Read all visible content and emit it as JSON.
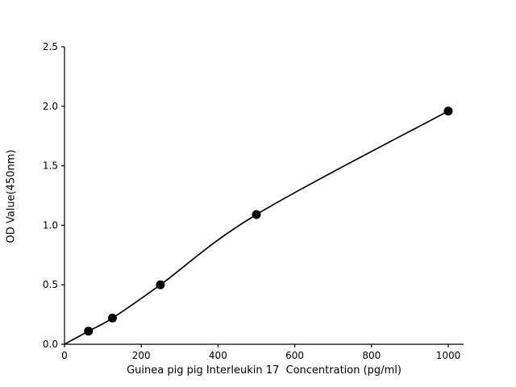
{
  "chart_data": {
    "type": "scatter",
    "title": "",
    "xlabel": "Guinea pig pig Interleukin 17  Concentration (pg/ml)",
    "ylabel": "OD Value(450nm)",
    "points": {
      "x": [
        62.5,
        125,
        250,
        500,
        1000
      ],
      "y": [
        0.11,
        0.22,
        0.5,
        1.09,
        1.96
      ]
    },
    "curve_start": {
      "x": 0,
      "y": 0
    },
    "xlim": [
      0,
      1040
    ],
    "ylim": [
      0,
      2.5
    ],
    "xticks": [
      0,
      200,
      400,
      600,
      800,
      1000
    ],
    "yticks": [
      0.0,
      0.5,
      1.0,
      1.5,
      2.0,
      2.5
    ],
    "grid": false,
    "legend": "none",
    "marker_color": "#000000",
    "line_color": "#000000",
    "axis_color": "#000000",
    "background": "#ffffff",
    "marker_radius": 5.5,
    "line_width": 1.7
  }
}
